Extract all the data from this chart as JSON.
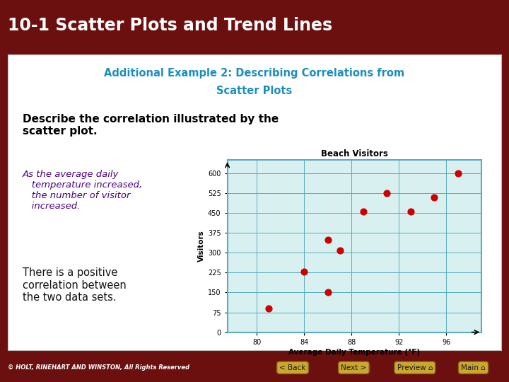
{
  "title": "10-1 Scatter Plots and Trend Lines",
  "title_bg": "#6B0F0F",
  "title_color": "#FFFFFF",
  "subtitle_line1": "Additional Example 2: Describing Correlations from",
  "subtitle_line2": "Scatter Plots",
  "subtitle_color": "#1B8DBF",
  "body_bg": "#6B0F0F",
  "question_text": "Describe the correlation illustrated by the\nscatter plot.",
  "question_color": "#000000",
  "answer1_text": "As the average daily\n   temperature increased,\n   the number of visitor\n   increased.",
  "answer1_color": "#4B0082",
  "answer2_text": "There is a positive\ncorrelation between\nthe two data sets.",
  "answer2_color": "#111111",
  "scatter_title": "Beach Visitors",
  "scatter_xlabel": "Average Daily Temperature (°F)",
  "scatter_ylabel": "Visitors",
  "scatter_x": [
    81,
    84,
    86,
    86,
    87,
    89,
    91,
    93,
    95,
    97
  ],
  "scatter_y": [
    90,
    230,
    150,
    350,
    310,
    455,
    525,
    455,
    510,
    600
  ],
  "scatter_color": "#CC0000",
  "scatter_bg": "#D8F0F0",
  "scatter_border": "#5AACBE",
  "xticks": [
    80,
    84,
    88,
    92,
    96
  ],
  "yticks": [
    0,
    75,
    150,
    225,
    300,
    375,
    450,
    525,
    600
  ],
  "xlim": [
    77.5,
    99
  ],
  "ylim": [
    0,
    650
  ],
  "footer_bg": "#6B0F0F",
  "footer_text": "© HOLT, RINEHART AND WINSTON, All Rights Reserved",
  "footer_color": "#FFFFFF",
  "nav_buttons": [
    "< Back",
    "Next >",
    "Preview ⌂",
    "Main ⌂"
  ],
  "nav_button_color": "#C8A830"
}
